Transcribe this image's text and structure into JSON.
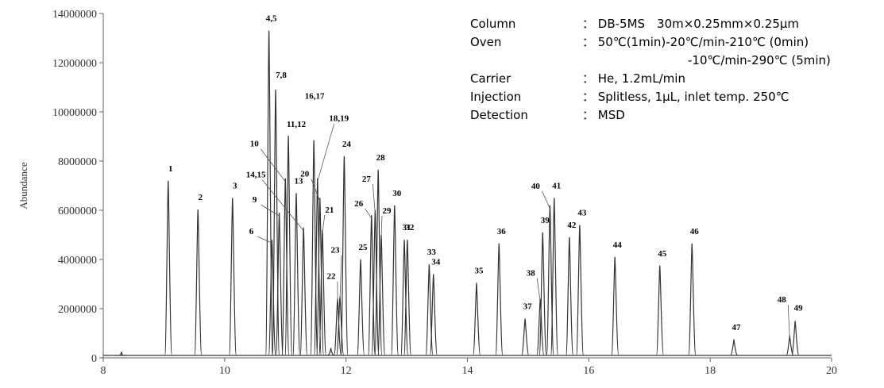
{
  "chart_data": {
    "type": "line",
    "y_label": "Abundance",
    "color": "#333333",
    "xlim": [
      8,
      20
    ],
    "xticks": [
      8,
      10,
      12,
      14,
      16,
      18,
      20
    ],
    "ylim": [
      0,
      14000000
    ],
    "yticks": [
      0,
      2000000,
      4000000,
      6000000,
      8000000,
      10000000,
      12000000,
      14000000
    ],
    "baseline": 100000,
    "peaks": [
      {
        "label": "1",
        "x": 9.07,
        "y": 7200000
      },
      {
        "label": "2",
        "x": 9.56,
        "y": 6030000
      },
      {
        "label": "3",
        "x": 10.13,
        "y": 6500000
      },
      {
        "label": "4,5",
        "x": 10.73,
        "y": 13300000
      },
      {
        "label": "6",
        "x": 10.78,
        "y": 4800000
      },
      {
        "label": "7,8",
        "x": 10.84,
        "y": 10900000
      },
      {
        "label": "9",
        "x": 10.9,
        "y": 5900000
      },
      {
        "label": "10",
        "x": 11.0,
        "y": 7300000
      },
      {
        "label": "11,12",
        "x": 11.05,
        "y": 9030000
      },
      {
        "label": "13",
        "x": 11.18,
        "y": 6700000
      },
      {
        "label": "14,15",
        "x": 11.3,
        "y": 5300000
      },
      {
        "label": "16,17",
        "x": 11.47,
        "y": 8850000
      },
      {
        "label": "18,19",
        "x": 11.53,
        "y": 7300000
      },
      {
        "label": "20",
        "x": 11.57,
        "y": 6500000
      },
      {
        "label": "21",
        "x": 11.61,
        "y": 5200000
      },
      {
        "label": "22",
        "x": 11.86,
        "y": 2400000
      },
      {
        "label": "23",
        "x": 11.9,
        "y": 2500000
      },
      {
        "label": "24",
        "x": 11.97,
        "y": 8200000
      },
      {
        "label": "25",
        "x": 12.24,
        "y": 4000000
      },
      {
        "label": "26",
        "x": 12.42,
        "y": 5800000
      },
      {
        "label": "27",
        "x": 12.48,
        "y": 6000000
      },
      {
        "label": "28",
        "x": 12.53,
        "y": 7650000
      },
      {
        "label": "29",
        "x": 12.58,
        "y": 5000000
      },
      {
        "label": "30",
        "x": 12.8,
        "y": 6200000
      },
      {
        "label": "31",
        "x": 12.96,
        "y": 4800000
      },
      {
        "label": "32",
        "x": 13.01,
        "y": 4800000
      },
      {
        "label": "33",
        "x": 13.37,
        "y": 3800000
      },
      {
        "label": "34",
        "x": 13.44,
        "y": 3400000
      },
      {
        "label": "35",
        "x": 14.15,
        "y": 3050000
      },
      {
        "label": "36",
        "x": 14.52,
        "y": 4650000
      },
      {
        "label": "37",
        "x": 14.95,
        "y": 1600000
      },
      {
        "label": "38",
        "x": 15.2,
        "y": 2400000
      },
      {
        "label": "39",
        "x": 15.24,
        "y": 5100000
      },
      {
        "label": "40",
        "x": 15.36,
        "y": 6200000
      },
      {
        "label": "41",
        "x": 15.43,
        "y": 6500000
      },
      {
        "label": "42",
        "x": 15.68,
        "y": 4900000
      },
      {
        "label": "43",
        "x": 15.85,
        "y": 5400000
      },
      {
        "label": "44",
        "x": 16.43,
        "y": 4100000
      },
      {
        "label": "45",
        "x": 17.17,
        "y": 3750000
      },
      {
        "label": "46",
        "x": 17.7,
        "y": 4650000
      },
      {
        "label": "47",
        "x": 18.39,
        "y": 750000
      },
      {
        "label": "48",
        "x": 19.31,
        "y": 900000
      },
      {
        "label": "49",
        "x": 19.4,
        "y": 1500000
      },
      {
        "label": null,
        "x": 8.3,
        "y": 250000
      },
      {
        "label": null,
        "x": 11.75,
        "y": 400000
      }
    ],
    "conditions": [
      {
        "name": "Column",
        "value": "： DB-5MS　30m×0.25mm×0.25μm"
      },
      {
        "name": "Oven",
        "value": "： 50℃(1min)-20℃/min-210℃ (0min)"
      },
      {
        "name": null,
        "value": "-10℃/min-290℃ (5min)"
      },
      {
        "name": "Carrier",
        "value": "： He, 1.2mL/min"
      },
      {
        "name": "Injection",
        "value": "： Splitless, 1μL, inlet temp. 250℃"
      },
      {
        "name": "Detection",
        "value": "： MSD"
      }
    ]
  }
}
